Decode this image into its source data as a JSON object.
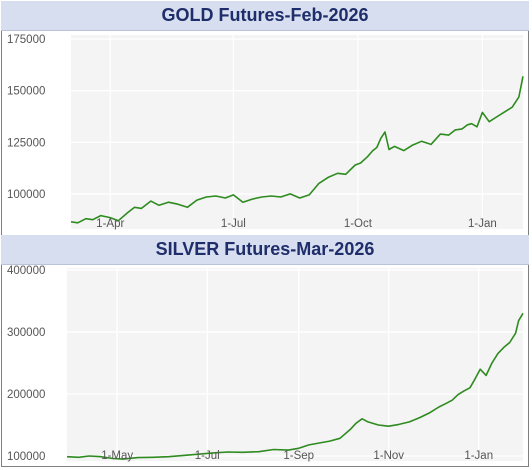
{
  "chart_data": [
    {
      "type": "line",
      "title": "GOLD Futures-Feb-2026",
      "xlabel": "",
      "ylabel": "",
      "ylim": [
        83000,
        177000
      ],
      "xlim": [
        "2025-03-03",
        "2026-01-31"
      ],
      "yticks": [
        {
          "value": 100000,
          "label": "100000"
        },
        {
          "value": 125000,
          "label": "125000"
        },
        {
          "value": 150000,
          "label": "150000"
        },
        {
          "value": 175000,
          "label": "175000"
        }
      ],
      "xticks": [
        {
          "value": "2025-04-01",
          "label": "1-Apr"
        },
        {
          "value": "2025-07-01",
          "label": "1-Jul"
        },
        {
          "value": "2025-10-01",
          "label": "1-Oct"
        },
        {
          "value": "2026-01-01",
          "label": "1-Jan"
        }
      ],
      "grid": true,
      "color": "#2e8b1f",
      "series": [
        {
          "x": [
            "2025-03-03",
            "2025-03-08",
            "2025-03-14",
            "2025-03-19",
            "2025-03-25",
            "2025-04-01",
            "2025-04-07",
            "2025-04-14",
            "2025-04-19",
            "2025-04-24",
            "2025-05-01",
            "2025-05-07",
            "2025-05-14",
            "2025-05-21",
            "2025-05-28",
            "2025-06-04",
            "2025-06-11",
            "2025-06-18",
            "2025-06-25",
            "2025-07-01",
            "2025-07-08",
            "2025-07-15",
            "2025-07-22",
            "2025-07-29",
            "2025-08-05",
            "2025-08-12",
            "2025-08-19",
            "2025-08-26",
            "2025-09-02",
            "2025-09-09",
            "2025-09-16",
            "2025-09-22",
            "2025-09-29",
            "2025-10-03",
            "2025-10-08",
            "2025-10-12",
            "2025-10-15",
            "2025-10-18",
            "2025-10-21",
            "2025-10-24",
            "2025-10-28",
            "2025-11-04",
            "2025-11-10",
            "2025-11-17",
            "2025-11-24",
            "2025-12-01",
            "2025-12-07",
            "2025-12-12",
            "2025-12-17",
            "2025-12-21",
            "2025-12-24",
            "2025-12-28",
            "2026-01-01",
            "2026-01-06",
            "2026-01-12",
            "2026-01-18",
            "2026-01-23",
            "2026-01-28",
            "2026-01-31"
          ],
          "y": [
            86500,
            86000,
            88000,
            87500,
            89500,
            88500,
            87000,
            91000,
            93500,
            93000,
            96500,
            94500,
            96000,
            95000,
            93500,
            97000,
            98500,
            99000,
            98000,
            99500,
            96000,
            97500,
            98500,
            99000,
            98500,
            100000,
            98000,
            99500,
            105000,
            108000,
            110000,
            109500,
            114000,
            115000,
            118000,
            121000,
            122500,
            127000,
            130000,
            121500,
            123000,
            121000,
            123500,
            125500,
            124000,
            129000,
            128500,
            131000,
            131500,
            133500,
            134000,
            132500,
            139500,
            135000,
            137500,
            140000,
            142000,
            147000,
            157000
          ]
        }
      ]
    },
    {
      "type": "line",
      "title": "SILVER Futures-Mar-2026",
      "xlabel": "",
      "ylabel": "",
      "ylim": [
        92000,
        403000
      ],
      "xlim": [
        "2025-03-28",
        "2026-01-31"
      ],
      "yticks": [
        {
          "value": 100000,
          "label": "100000"
        },
        {
          "value": 200000,
          "label": "200000"
        },
        {
          "value": 300000,
          "label": "300000"
        },
        {
          "value": 400000,
          "label": "400000"
        }
      ],
      "xticks": [
        {
          "value": "2025-05-01",
          "label": "1-May"
        },
        {
          "value": "2025-07-01",
          "label": "1-Jul"
        },
        {
          "value": "2025-09-01",
          "label": "1-Sep"
        },
        {
          "value": "2025-11-01",
          "label": "1-Nov"
        },
        {
          "value": "2026-01-01",
          "label": "1-Jan"
        }
      ],
      "grid": true,
      "color": "#2e8b1f",
      "series": [
        {
          "x": [
            "2025-03-28",
            "2025-04-05",
            "2025-04-12",
            "2025-04-20",
            "2025-04-28",
            "2025-05-05",
            "2025-05-15",
            "2025-05-25",
            "2025-06-05",
            "2025-06-15",
            "2025-06-25",
            "2025-07-05",
            "2025-07-15",
            "2025-07-25",
            "2025-08-05",
            "2025-08-15",
            "2025-08-25",
            "2025-09-01",
            "2025-09-08",
            "2025-09-15",
            "2025-09-22",
            "2025-09-29",
            "2025-10-06",
            "2025-10-10",
            "2025-10-14",
            "2025-10-18",
            "2025-10-25",
            "2025-11-01",
            "2025-11-08",
            "2025-11-15",
            "2025-11-22",
            "2025-11-29",
            "2025-12-05",
            "2025-12-10",
            "2025-12-14",
            "2025-12-18",
            "2025-12-22",
            "2025-12-26",
            "2025-12-29",
            "2026-01-02",
            "2026-01-06",
            "2026-01-10",
            "2026-01-14",
            "2026-01-18",
            "2026-01-22",
            "2026-01-26",
            "2026-01-28",
            "2026-01-31"
          ],
          "y": [
            99000,
            98000,
            100000,
            99000,
            96000,
            95000,
            97500,
            98000,
            99000,
            101000,
            103000,
            105000,
            106500,
            106000,
            107000,
            110500,
            109500,
            112500,
            118000,
            121000,
            124000,
            128500,
            143000,
            153000,
            160000,
            155000,
            150000,
            148000,
            151000,
            155000,
            162000,
            170000,
            179000,
            185000,
            190000,
            199000,
            205000,
            210000,
            222000,
            240000,
            230000,
            250000,
            265000,
            275000,
            283000,
            298000,
            318000,
            330000
          ]
        }
      ]
    }
  ]
}
